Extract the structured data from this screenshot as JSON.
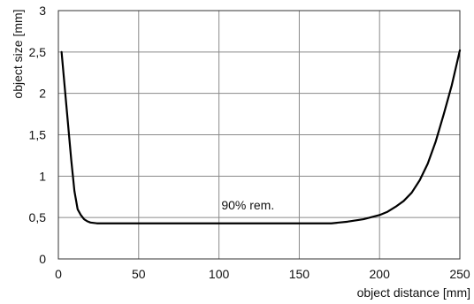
{
  "chart_data": {
    "type": "line",
    "xlabel": "object distance [mm]",
    "ylabel": "object size [mm]",
    "xlim": [
      0,
      250
    ],
    "ylim": [
      0,
      3
    ],
    "xticks": [
      0,
      50,
      100,
      150,
      200,
      250
    ],
    "yticks": [
      0,
      0.5,
      1,
      1.5,
      2,
      2.5,
      3
    ],
    "xtick_labels": [
      "0",
      "50",
      "100",
      "150",
      "200",
      "250"
    ],
    "ytick_labels": [
      "0",
      "0,5",
      "1",
      "1,5",
      "2",
      "2,5",
      "3"
    ],
    "grid": true,
    "annotations": [
      {
        "text": "90% rem.",
        "x": 118,
        "y": 0.6
      }
    ],
    "series": [
      {
        "color": "#000000",
        "x": [
          2,
          5,
          8,
          10,
          12,
          14,
          16,
          18,
          20,
          24,
          30,
          50,
          100,
          150,
          170,
          180,
          190,
          200,
          205,
          210,
          215,
          220,
          225,
          230,
          235,
          240,
          245,
          250
        ],
        "y": [
          2.5,
          1.85,
          1.2,
          0.82,
          0.6,
          0.53,
          0.48,
          0.455,
          0.44,
          0.43,
          0.43,
          0.43,
          0.43,
          0.43,
          0.43,
          0.45,
          0.48,
          0.53,
          0.57,
          0.63,
          0.7,
          0.8,
          0.95,
          1.15,
          1.42,
          1.75,
          2.1,
          2.52
        ]
      }
    ]
  }
}
